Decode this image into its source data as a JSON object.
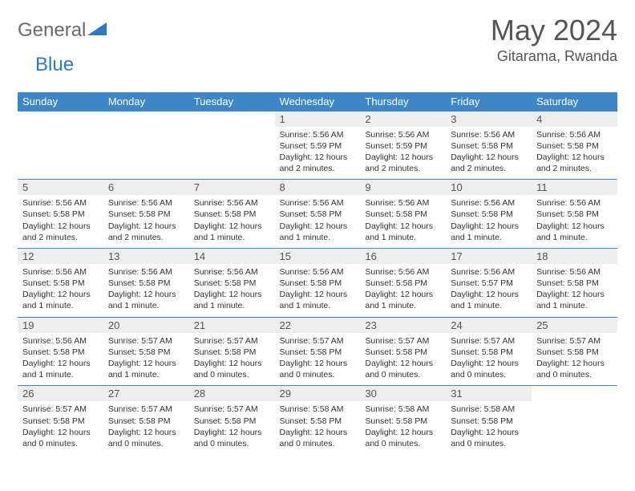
{
  "logo": {
    "part1": "General",
    "part2": "Blue"
  },
  "title": "May 2024",
  "location": "Gitarama, Rwanda",
  "colors": {
    "header_bg": "#3d87c9",
    "header_text": "#ffffff",
    "daynum_bg": "#eeeeee",
    "rule": "#3d87c9",
    "logo_gray": "#6a6a6a",
    "logo_blue": "#2f79c2"
  },
  "headers": [
    "Sunday",
    "Monday",
    "Tuesday",
    "Wednesday",
    "Thursday",
    "Friday",
    "Saturday"
  ],
  "weeks": [
    [
      {
        "n": "",
        "sr": "",
        "ss": "",
        "dl": ""
      },
      {
        "n": "",
        "sr": "",
        "ss": "",
        "dl": ""
      },
      {
        "n": "",
        "sr": "",
        "ss": "",
        "dl": ""
      },
      {
        "n": "1",
        "sr": "5:56 AM",
        "ss": "5:59 PM",
        "dl": "12 hours and 2 minutes."
      },
      {
        "n": "2",
        "sr": "5:56 AM",
        "ss": "5:59 PM",
        "dl": "12 hours and 2 minutes."
      },
      {
        "n": "3",
        "sr": "5:56 AM",
        "ss": "5:58 PM",
        "dl": "12 hours and 2 minutes."
      },
      {
        "n": "4",
        "sr": "5:56 AM",
        "ss": "5:58 PM",
        "dl": "12 hours and 2 minutes."
      }
    ],
    [
      {
        "n": "5",
        "sr": "5:56 AM",
        "ss": "5:58 PM",
        "dl": "12 hours and 2 minutes."
      },
      {
        "n": "6",
        "sr": "5:56 AM",
        "ss": "5:58 PM",
        "dl": "12 hours and 2 minutes."
      },
      {
        "n": "7",
        "sr": "5:56 AM",
        "ss": "5:58 PM",
        "dl": "12 hours and 1 minute."
      },
      {
        "n": "8",
        "sr": "5:56 AM",
        "ss": "5:58 PM",
        "dl": "12 hours and 1 minute."
      },
      {
        "n": "9",
        "sr": "5:56 AM",
        "ss": "5:58 PM",
        "dl": "12 hours and 1 minute."
      },
      {
        "n": "10",
        "sr": "5:56 AM",
        "ss": "5:58 PM",
        "dl": "12 hours and 1 minute."
      },
      {
        "n": "11",
        "sr": "5:56 AM",
        "ss": "5:58 PM",
        "dl": "12 hours and 1 minute."
      }
    ],
    [
      {
        "n": "12",
        "sr": "5:56 AM",
        "ss": "5:58 PM",
        "dl": "12 hours and 1 minute."
      },
      {
        "n": "13",
        "sr": "5:56 AM",
        "ss": "5:58 PM",
        "dl": "12 hours and 1 minute."
      },
      {
        "n": "14",
        "sr": "5:56 AM",
        "ss": "5:58 PM",
        "dl": "12 hours and 1 minute."
      },
      {
        "n": "15",
        "sr": "5:56 AM",
        "ss": "5:58 PM",
        "dl": "12 hours and 1 minute."
      },
      {
        "n": "16",
        "sr": "5:56 AM",
        "ss": "5:58 PM",
        "dl": "12 hours and 1 minute."
      },
      {
        "n": "17",
        "sr": "5:56 AM",
        "ss": "5:57 PM",
        "dl": "12 hours and 1 minute."
      },
      {
        "n": "18",
        "sr": "5:56 AM",
        "ss": "5:58 PM",
        "dl": "12 hours and 1 minute."
      }
    ],
    [
      {
        "n": "19",
        "sr": "5:56 AM",
        "ss": "5:58 PM",
        "dl": "12 hours and 1 minute."
      },
      {
        "n": "20",
        "sr": "5:57 AM",
        "ss": "5:58 PM",
        "dl": "12 hours and 1 minute."
      },
      {
        "n": "21",
        "sr": "5:57 AM",
        "ss": "5:58 PM",
        "dl": "12 hours and 0 minutes."
      },
      {
        "n": "22",
        "sr": "5:57 AM",
        "ss": "5:58 PM",
        "dl": "12 hours and 0 minutes."
      },
      {
        "n": "23",
        "sr": "5:57 AM",
        "ss": "5:58 PM",
        "dl": "12 hours and 0 minutes."
      },
      {
        "n": "24",
        "sr": "5:57 AM",
        "ss": "5:58 PM",
        "dl": "12 hours and 0 minutes."
      },
      {
        "n": "25",
        "sr": "5:57 AM",
        "ss": "5:58 PM",
        "dl": "12 hours and 0 minutes."
      }
    ],
    [
      {
        "n": "26",
        "sr": "5:57 AM",
        "ss": "5:58 PM",
        "dl": "12 hours and 0 minutes."
      },
      {
        "n": "27",
        "sr": "5:57 AM",
        "ss": "5:58 PM",
        "dl": "12 hours and 0 minutes."
      },
      {
        "n": "28",
        "sr": "5:57 AM",
        "ss": "5:58 PM",
        "dl": "12 hours and 0 minutes."
      },
      {
        "n": "29",
        "sr": "5:58 AM",
        "ss": "5:58 PM",
        "dl": "12 hours and 0 minutes."
      },
      {
        "n": "30",
        "sr": "5:58 AM",
        "ss": "5:58 PM",
        "dl": "12 hours and 0 minutes."
      },
      {
        "n": "31",
        "sr": "5:58 AM",
        "ss": "5:58 PM",
        "dl": "12 hours and 0 minutes."
      },
      {
        "n": "",
        "sr": "",
        "ss": "",
        "dl": ""
      }
    ]
  ],
  "labels": {
    "sunrise": "Sunrise:",
    "sunset": "Sunset:",
    "daylight": "Daylight:"
  }
}
